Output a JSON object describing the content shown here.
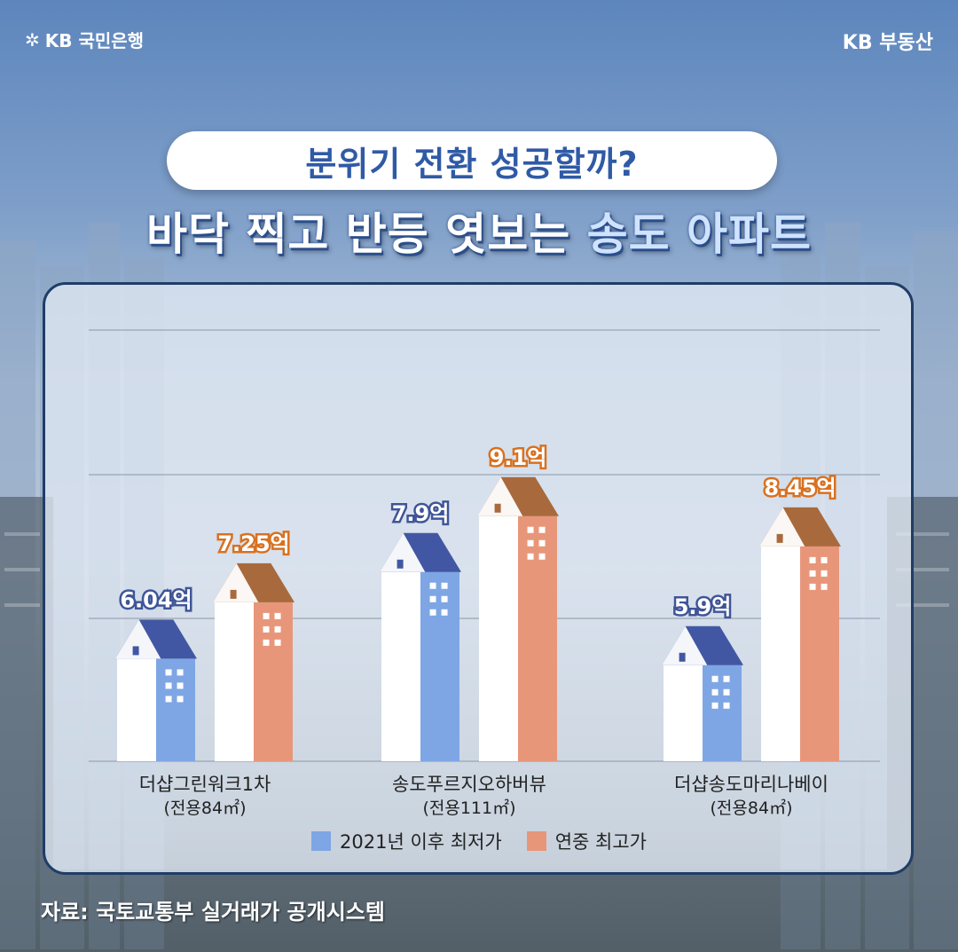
{
  "brand": {
    "bank": "KB 국민은행",
    "realty": "KB 부동산"
  },
  "subtitle": "분위기 전환 성공할까?",
  "headline": {
    "part1": "바닥 찍고 반등 엿보는 ",
    "part2": "송도 아파트"
  },
  "source": "자료: 국토교통부 실거래가 공개시스템",
  "colors": {
    "low": "#7ea6e4",
    "low_roof": "#4257a3",
    "high": "#e8967a",
    "high_roof": "#a86a3c",
    "low_label": "#3f5598",
    "high_label": "#d9711f"
  },
  "chart_data": {
    "type": "bar",
    "categories": [
      {
        "name": "더샵그린워크1차",
        "sub": "(전용84㎡)"
      },
      {
        "name": "송도푸르지오하버뷰",
        "sub": "(전용111㎡)"
      },
      {
        "name": "더샵송도마리나베이",
        "sub": "(전용84㎡)"
      }
    ],
    "series": [
      {
        "name": "2021년 이후 최저가",
        "values": [
          6.04,
          7.9,
          5.9
        ],
        "labels": [
          "6.04억",
          "7.9억",
          "5.9억"
        ]
      },
      {
        "name": "연중 최고가",
        "values": [
          7.25,
          9.1,
          8.45
        ],
        "labels": [
          "7.25억",
          "9.1억",
          "8.45억"
        ]
      }
    ],
    "ylim": [
      0,
      10
    ],
    "grid": true,
    "legend": "bottom"
  }
}
